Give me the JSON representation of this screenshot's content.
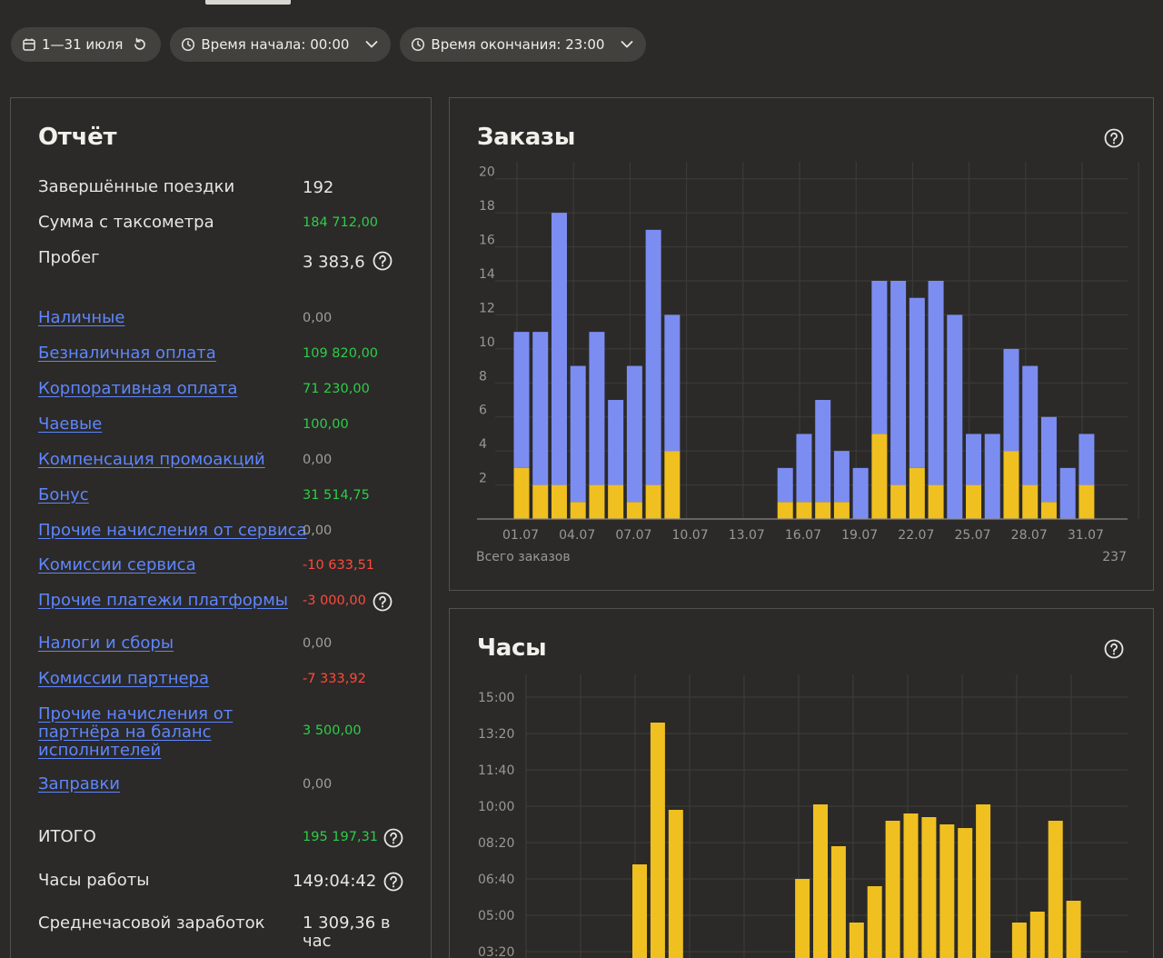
{
  "filters": {
    "date_range": "1—31 июля",
    "start_time": "Время начала: 00:00",
    "end_time": "Время окончания: 23:00"
  },
  "report": {
    "title": "Отчёт",
    "rows": [
      {
        "label": "Завершённые поездки",
        "value": "192",
        "link": false,
        "tone": "big"
      },
      {
        "label": "Сумма с таксометра",
        "value": "184 712,00",
        "link": false,
        "tone": "pos"
      },
      {
        "label": "Пробег",
        "value": "3 383,6",
        "link": false,
        "tone": "big",
        "help": true
      },
      {
        "label": "Наличные",
        "value": "0,00",
        "link": true,
        "tone": "zero"
      },
      {
        "label": "Безналичная оплата",
        "value": "109 820,00",
        "link": true,
        "tone": "pos"
      },
      {
        "label": "Корпоративная оплата",
        "value": "71 230,00",
        "link": true,
        "tone": "pos"
      },
      {
        "label": "Чаевые",
        "value": "100,00",
        "link": true,
        "tone": "pos"
      },
      {
        "label": "Компенсация промоакций",
        "value": "0,00",
        "link": true,
        "tone": "zero"
      },
      {
        "label": "Бонус",
        "value": "31 514,75",
        "link": true,
        "tone": "pos"
      },
      {
        "label": "Прочие начисления от сервиса",
        "value": "0,00",
        "link": true,
        "tone": "zero"
      },
      {
        "label": "Комиссии сервиса",
        "value": "-10 633,51",
        "link": true,
        "tone": "neg"
      },
      {
        "label": "Прочие платежи платформы",
        "value": "-3 000,00",
        "link": true,
        "tone": "neg",
        "help": true
      },
      {
        "label": "Налоги и сборы",
        "value": "0,00",
        "link": true,
        "tone": "zero"
      },
      {
        "label": "Комиссии партнера",
        "value": "-7 333,92",
        "link": true,
        "tone": "neg"
      },
      {
        "label": "Прочие начисления от партнёра на баланс исполнителей",
        "value": "3 500,00",
        "link": true,
        "tone": "pos"
      },
      {
        "label": "Заправки",
        "value": "0,00",
        "link": true,
        "tone": "zero"
      },
      {
        "label": "ИТОГО",
        "value": "195 197,31",
        "link": false,
        "tone": "pos",
        "help": true
      },
      {
        "label": "Часы работы",
        "value": "149:04:42",
        "link": false,
        "tone": "big",
        "help": true
      },
      {
        "label": "Среднечасовой заработок",
        "value": "1 309,36 в час",
        "link": false,
        "tone": "big"
      }
    ]
  },
  "orders_panel": {
    "title": "Заказы",
    "footer_label": "Всего заказов",
    "footer_value": "237"
  },
  "hours_panel": {
    "title": "Часы"
  },
  "colors": {
    "blue": "#7c8df2",
    "yellow": "#f0c020",
    "positive": "#2ecc4a",
    "negative": "#ff4a3a",
    "link": "#5e86ff"
  },
  "chart_data": [
    {
      "type": "bar",
      "stacked": true,
      "title": "Заказы",
      "x": [
        "01.07",
        "02.07",
        "03.07",
        "04.07",
        "05.07",
        "06.07",
        "07.07",
        "08.07",
        "09.07",
        "10.07",
        "11.07",
        "12.07",
        "13.07",
        "14.07",
        "15.07",
        "16.07",
        "17.07",
        "18.07",
        "19.07",
        "20.07",
        "21.07",
        "22.07",
        "23.07",
        "24.07",
        "25.07",
        "26.07",
        "27.07",
        "28.07",
        "29.07",
        "30.07",
        "31.07"
      ],
      "x_tick_labels": [
        "01.07",
        "04.07",
        "07.07",
        "10.07",
        "13.07",
        "16.07",
        "19.07",
        "22.07",
        "25.07",
        "28.07",
        "31.07"
      ],
      "series": [
        {
          "color": "#f0c020",
          "values": [
            3,
            2,
            2,
            1,
            2,
            2,
            1,
            2,
            4,
            0,
            0,
            0,
            0,
            0,
            1,
            1,
            1,
            1,
            0,
            5,
            2,
            3,
            2,
            0,
            2,
            0,
            4,
            2,
            1,
            0,
            2
          ]
        },
        {
          "color": "#7c8df2",
          "values": [
            8,
            9,
            16,
            8,
            9,
            5,
            8,
            15,
            8,
            0,
            0,
            0,
            0,
            0,
            2,
            4,
            6,
            3,
            3,
            9,
            12,
            10,
            12,
            12,
            3,
            5,
            6,
            7,
            5,
            3,
            3
          ]
        }
      ],
      "y_ticks": [
        2,
        4,
        6,
        8,
        10,
        12,
        14,
        16,
        18,
        20
      ],
      "ylim": [
        0,
        21
      ]
    },
    {
      "type": "bar",
      "title": "Часы",
      "y_unit": "minutes",
      "y_tick_labels": [
        "15:00",
        "13:20",
        "11:40",
        "10:00",
        "08:20",
        "06:40",
        "05:00",
        "03:20"
      ],
      "y_tick_minutes": [
        900,
        800,
        700,
        600,
        500,
        400,
        300,
        200
      ],
      "ylim_visible": [
        200,
        960
      ],
      "series": [
        {
          "color": "#f0c020",
          "values_minutes": [
            0,
            0,
            0,
            0,
            0,
            0,
            440,
            830,
            590,
            0,
            0,
            0,
            0,
            0,
            0,
            400,
            605,
            490,
            280,
            380,
            560,
            580,
            570,
            550,
            540,
            605,
            120,
            280,
            310,
            560,
            340
          ]
        }
      ]
    }
  ]
}
